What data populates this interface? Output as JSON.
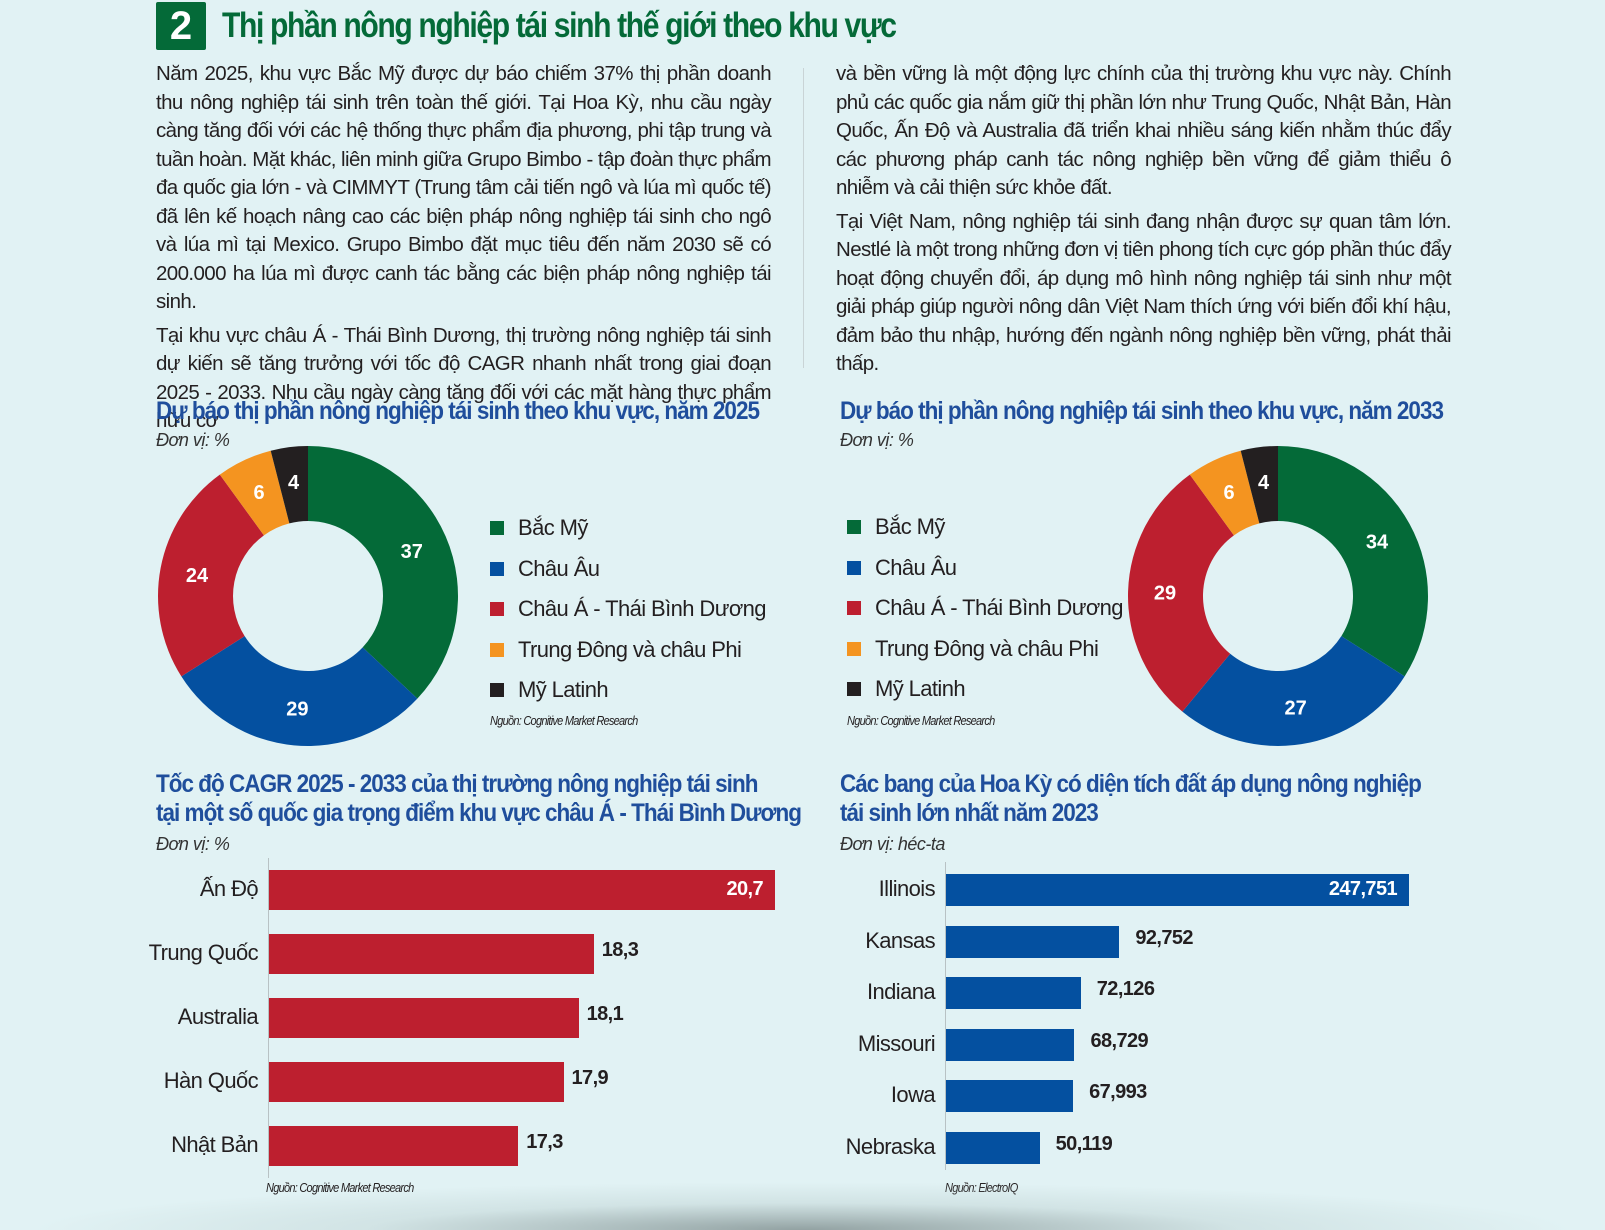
{
  "header": {
    "section_number": "2",
    "title": "Thị phần nông nghiệp tái sinh thế giới theo khu vực"
  },
  "article": {
    "left_paragraphs": [
      "Năm 2025, khu vực Bắc Mỹ được dự báo chiếm 37% thị phần doanh thu nông nghiệp tái sinh trên toàn thế giới. Tại Hoa Kỳ, nhu cầu ngày càng tăng đối với các hệ thống thực phẩm địa phương, phi tập trung và tuần hoàn. Mặt khác, liên minh giữa Grupo Bimbo - tập đoàn thực phẩm đa quốc gia lớn - và CIMMYT (Trung tâm cải tiến ngô và lúa mì quốc tế) đã lên kế hoạch nâng cao các biện pháp nông nghiệp tái sinh cho ngô và lúa mì tại Mexico. Grupo Bimbo đặt mục tiêu đến năm 2030 sẽ có 200.000 ha lúa mì được canh tác bằng các biện pháp nông nghiệp tái sinh.",
      "Tại khu vực châu Á - Thái Bình Dương, thị trường nông nghiệp tái sinh dự kiến sẽ tăng trưởng với tốc độ CAGR nhanh nhất trong giai đoạn 2025 - 2033. Nhu cầu ngày càng tăng đối với các mặt hàng thực phẩm hữu cơ"
    ],
    "right_paragraphs": [
      "và bền vững là một động lực chính của thị trường khu vực này. Chính phủ các quốc gia nắm giữ thị phần lớn như Trung Quốc, Nhật Bản, Hàn Quốc, Ấn Độ và Australia đã triển khai nhiều sáng kiến nhằm thúc đẩy các phương pháp canh tác nông nghiệp bền vững để giảm thiểu ô nhiễm và cải thiện sức khỏe đất.",
      "Tại Việt Nam, nông nghiệp tái sinh đang nhận được sự quan tâm lớn. Nestlé là một trong những đơn vị tiên phong tích cực góp phần thúc đẩy hoạt động chuyển đổi, áp dụng mô hình nông nghiệp tái sinh như một giải pháp giúp người nông dân Việt Nam thích ứng với biến đổi khí hậu, đảm bảo thu nhập, hướng đến ngành nông nghiệp bền vững, phát thải thấp."
    ]
  },
  "colors": {
    "green": "#046a38",
    "blue": "#0450a0",
    "red": "#bd1f2f",
    "orange": "#f49420",
    "black": "#231f20",
    "title_blue": "#1f4e9c"
  },
  "chart_data": [
    {
      "id": "donut_2025",
      "type": "pie",
      "title": "Dự báo thị phần nông nghiệp tái sinh theo khu vực, năm 2025",
      "unit": "Đơn vị: %",
      "categories": [
        "Bắc Mỹ",
        "Châu Âu",
        "Châu Á - Thái Bình Dương",
        "Trung Đông và châu Phi",
        "Mỹ Latinh"
      ],
      "values": [
        37,
        29,
        24,
        6,
        4
      ],
      "colors": [
        "#046a38",
        "#0450a0",
        "#bd1f2f",
        "#f49420",
        "#231f20"
      ],
      "legend_position": "right",
      "source": "Nguồn: Cognitive Market Research"
    },
    {
      "id": "donut_2033",
      "type": "pie",
      "title": "Dự báo thị phần nông nghiệp tái sinh theo khu vực, năm 2033",
      "unit": "Đơn vị: %",
      "categories": [
        "Bắc Mỹ",
        "Châu Âu",
        "Châu Á - Thái Bình Dương",
        "Trung Đông và châu Phi",
        "Mỹ Latinh"
      ],
      "values": [
        34,
        27,
        29,
        6,
        4
      ],
      "colors": [
        "#046a38",
        "#0450a0",
        "#bd1f2f",
        "#f49420",
        "#231f20"
      ],
      "legend_position": "left",
      "source": "Nguồn: Cognitive Market Research"
    },
    {
      "id": "bar_cagr",
      "type": "bar",
      "orientation": "horizontal",
      "title_lines": [
        "Tốc độ CAGR 2025 - 2033 của thị trường nông nghiệp tái sinh",
        "tại một số quốc gia trọng điểm khu vực châu Á - Thái Bình Dương"
      ],
      "unit": "Đơn vị: %",
      "categories": [
        "Ấn Độ",
        "Trung Quốc",
        "Australia",
        "Hàn Quốc",
        "Nhật Bản"
      ],
      "values": [
        20.7,
        18.3,
        18.1,
        17.9,
        17.3
      ],
      "value_labels": [
        "20,7",
        "18,3",
        "18,1",
        "17,9",
        "17,3"
      ],
      "color": "#bd1f2f",
      "xlim": [
        14,
        20.7
      ],
      "source": "Nguồn: Cognitive Market Research"
    },
    {
      "id": "bar_us_states",
      "type": "bar",
      "orientation": "horizontal",
      "title_lines": [
        "Các bang của Hoa Kỳ có diện tích đất áp dụng nông nghiệp",
        "tái sinh lớn nhất năm 2023"
      ],
      "unit": "Đơn vị: héc-ta",
      "categories": [
        "Illinois",
        "Kansas",
        "Indiana",
        "Missouri",
        "Iowa",
        "Nebraska"
      ],
      "values": [
        247751,
        92752,
        72126,
        68729,
        67993,
        50119
      ],
      "value_labels": [
        "247,751",
        "92,752",
        "72,126",
        "68,729",
        "67,993",
        "50,119"
      ],
      "color": "#0450a0",
      "xlim": [
        0,
        247751
      ],
      "source": "Nguồn: ElectroIQ"
    }
  ]
}
